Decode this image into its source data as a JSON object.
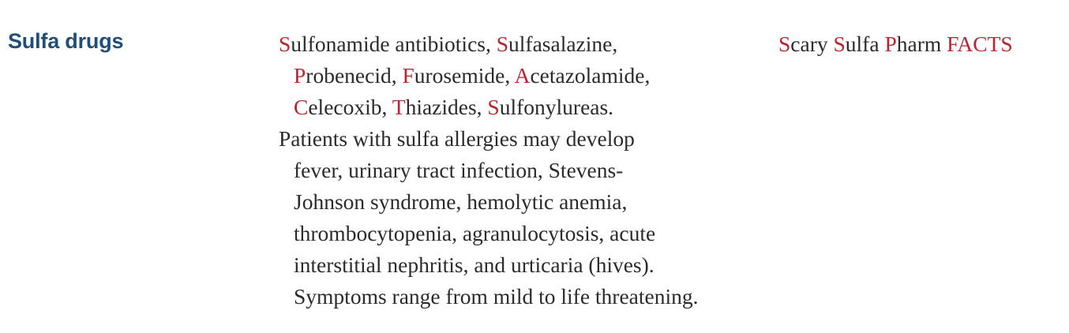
{
  "heading": "Sulfa drugs",
  "drug_list": {
    "items": [
      {
        "initial": "S",
        "rest": "ulfonamide antibiotics, "
      },
      {
        "initial": "S",
        "rest": "ulfasalazine,"
      },
      {
        "initial": "P",
        "rest": "robenecid, "
      },
      {
        "initial": "F",
        "rest": "urosemide, "
      },
      {
        "initial": "A",
        "rest": "cetazolamide,"
      },
      {
        "initial": "C",
        "rest": "elecoxib, "
      },
      {
        "initial": "T",
        "rest": "hiazides, "
      },
      {
        "initial": "S",
        "rest": "ulfonylureas."
      }
    ]
  },
  "allergy_paragraph": {
    "lines": [
      "Patients with sulfa allergies may develop",
      "fever, urinary tract infection, Stevens-",
      "Johnson syndrome, hemolytic anemia,",
      "thrombocytopenia, agranulocytosis, acute",
      "interstitial nephritis, and urticaria (hives).",
      "Symptoms range from mild to life threatening."
    ]
  },
  "mnemonic": {
    "words": [
      {
        "initial": "S",
        "rest": "cary "
      },
      {
        "initial": "S",
        "rest": "ulfa "
      },
      {
        "initial": "P",
        "rest": "harm "
      },
      {
        "initial": "FACTS",
        "rest": ""
      }
    ]
  },
  "colors": {
    "heading": "#1f4e79",
    "highlight": "#b8242f",
    "body_text": "#2b2b2b"
  }
}
